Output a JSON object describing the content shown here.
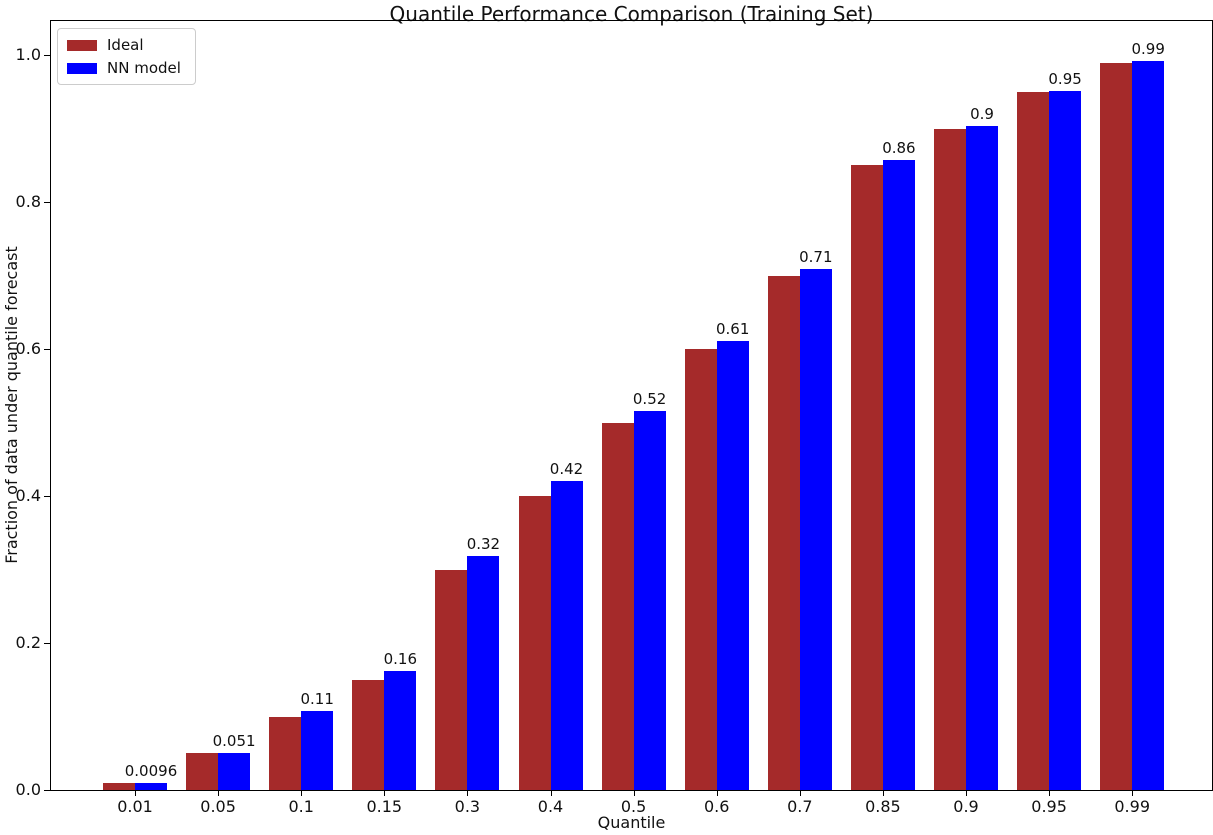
{
  "chart_data": {
    "type": "bar",
    "title": "Quantile Performance Comparison (Training Set)",
    "xlabel": "Quantile",
    "ylabel": "Fraction of data under quantile forecast",
    "categories": [
      "0.01",
      "0.05",
      "0.1",
      "0.15",
      "0.3",
      "0.4",
      "0.5",
      "0.6",
      "0.7",
      "0.85",
      "0.9",
      "0.95",
      "0.99"
    ],
    "series": [
      {
        "name": "Ideal",
        "color": "#a52a2a",
        "values": [
          0.01,
          0.05,
          0.1,
          0.15,
          0.3,
          0.4,
          0.5,
          0.6,
          0.7,
          0.85,
          0.9,
          0.95,
          0.99
        ]
      },
      {
        "name": "NN model",
        "color": "#0000ff",
        "values": [
          0.0096,
          0.051,
          0.108,
          0.162,
          0.318,
          0.421,
          0.516,
          0.611,
          0.709,
          0.858,
          0.904,
          0.952,
          0.992
        ],
        "bar_labels": [
          "0.0096",
          "0.051",
          "0.11",
          "0.16",
          "0.32",
          "0.42",
          "0.52",
          "0.61",
          "0.71",
          "0.86",
          "0.9",
          "0.95",
          "0.99"
        ]
      }
    ],
    "ytick_labels": [
      "0.0",
      "0.2",
      "0.4",
      "0.6",
      "0.8",
      "1.0"
    ],
    "ylim": [
      0,
      1.048
    ],
    "grid": false,
    "legend_position": "upper-left",
    "bar_labels_on": "NN model"
  }
}
